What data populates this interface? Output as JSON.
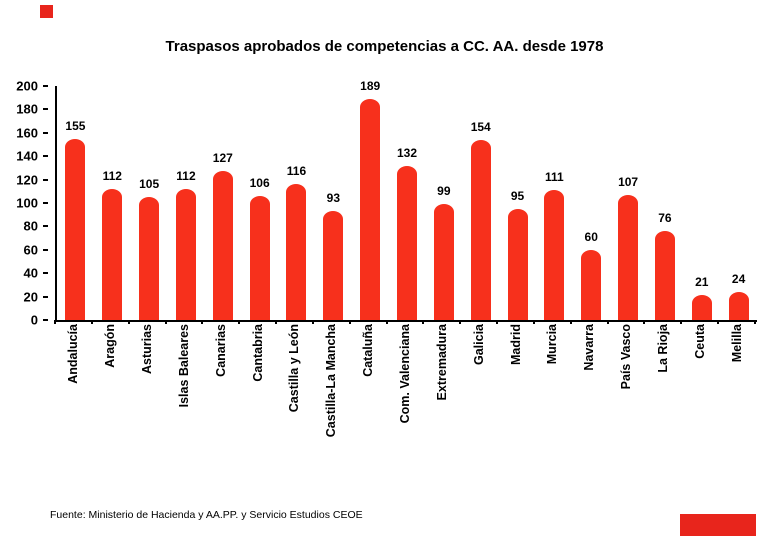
{
  "title": "Traspasos aprobados de competencias a CC. AA. desde 1978",
  "source": "Fuente: Ministerio de Hacienda y AA.PP. y Servicio Estudios CEOE",
  "colors": {
    "bar": "#f7301c",
    "axis": "#000000",
    "brand": "#e8251c"
  },
  "chart_data": {
    "type": "bar",
    "title": "Traspasos aprobados de competencias a CC. AA. desde 1978",
    "categories": [
      "Andalucía",
      "Aragón",
      "Asturias",
      "Islas Baleares",
      "Canarias",
      "Cantabria",
      "Castilla y León",
      "Castilla-La Mancha",
      "Cataluña",
      "Com. Valenciana",
      "Extremadura",
      "Galicia",
      "Madrid",
      "Murcia",
      "Navarra",
      "País Vasco",
      "La Rioja",
      "Ceuta",
      "Melilla"
    ],
    "values": [
      155,
      112,
      105,
      112,
      127,
      106,
      116,
      93,
      189,
      132,
      99,
      154,
      95,
      111,
      60,
      107,
      76,
      21,
      24
    ],
    "xlabel": "",
    "ylabel": "",
    "ylim": [
      0,
      200
    ],
    "yticks": [
      0,
      20,
      40,
      60,
      80,
      100,
      120,
      140,
      160,
      180,
      200
    ],
    "grid": false,
    "legend": false,
    "bar_color": "#f7301c"
  }
}
